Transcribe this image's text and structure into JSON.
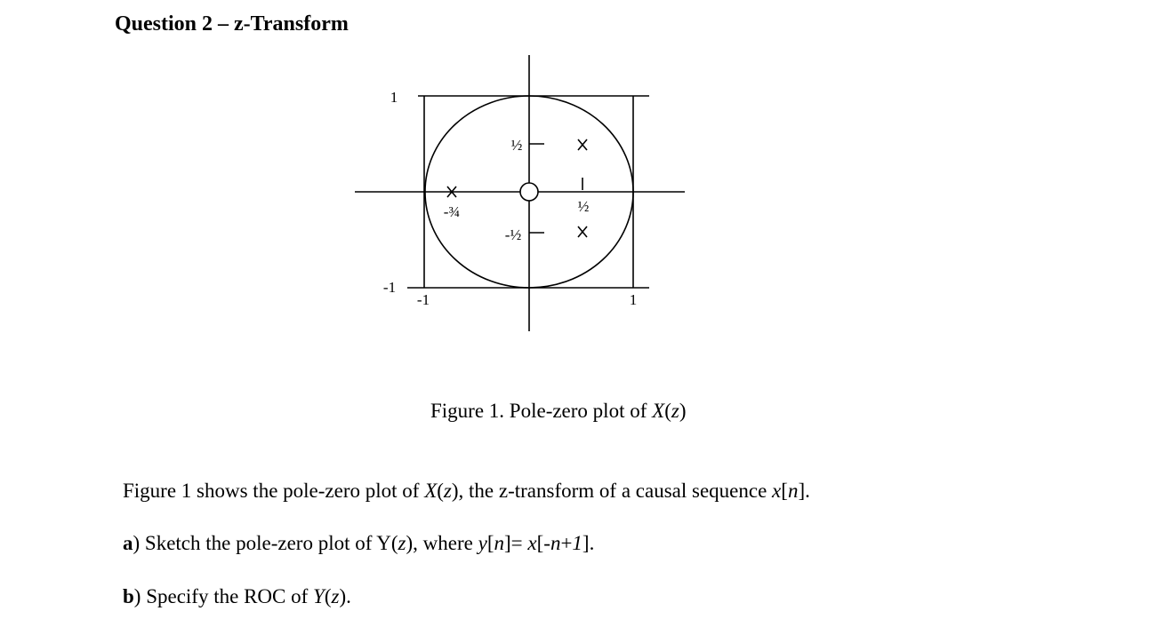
{
  "header": {
    "title": "Question 2 – z-Transform"
  },
  "figure": {
    "labels": {
      "y_top": "1",
      "y_bottom": "-1",
      "x_left": "-1",
      "x_right": "1",
      "half_up": "½",
      "half_down": "-½",
      "half_x": "½",
      "pole_left": "-¾"
    },
    "caption": [
      "Figure 1. Pole-zero plot of ",
      "X",
      "(",
      "z",
      ")"
    ]
  },
  "body": {
    "intro": [
      "Figure 1 shows the pole-zero plot of ",
      "X",
      "(",
      "z",
      "), the z-transform of a causal sequence ",
      "x",
      "[",
      "n",
      "]."
    ],
    "part_a": [
      "a",
      ") Sketch the pole-zero plot of Y(",
      "z",
      "), where ",
      "y",
      "[",
      "n",
      "]= ",
      "x",
      "[-",
      "n",
      "+",
      "1",
      "]."
    ],
    "part_b": [
      "b",
      ") Specify the ROC of ",
      "Y",
      "(",
      "z",
      ")."
    ]
  }
}
